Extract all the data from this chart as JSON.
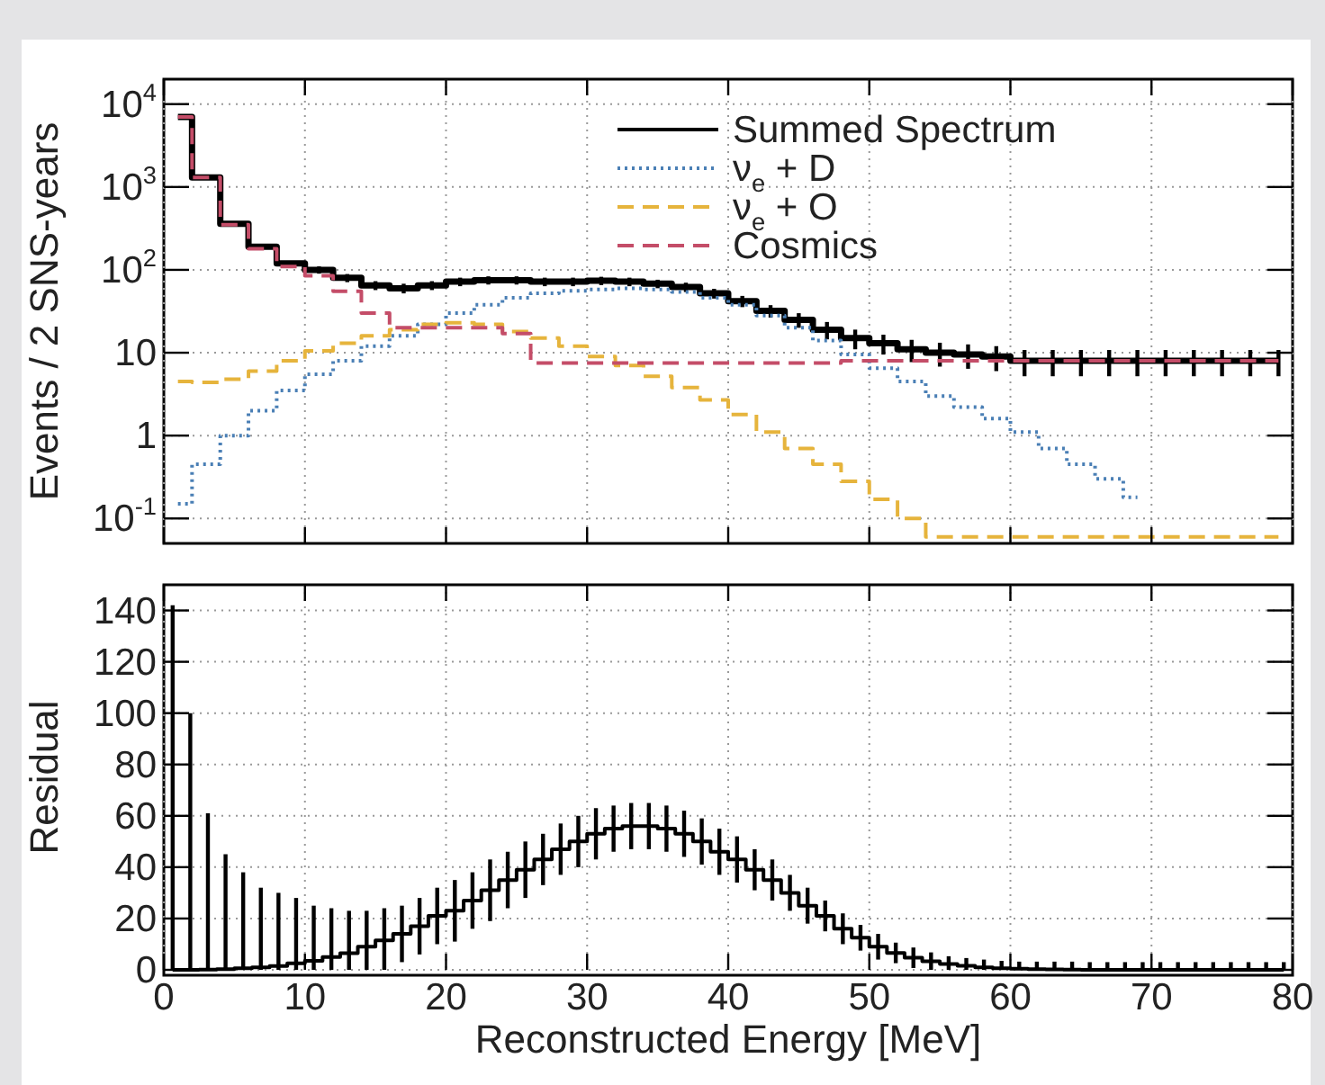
{
  "chart_data": [
    {
      "type": "step",
      "ylabel": "Events / 2 SNS-years",
      "log": true,
      "grid": true,
      "legend": "top right",
      "tick_labels": "y",
      "xlim": [
        0,
        80
      ],
      "xticks": [
        0,
        10,
        20,
        30,
        40,
        50,
        60,
        70,
        80
      ],
      "ylim": [
        0.05,
        20000
      ],
      "yticks": [
        {
          "value": 0.1,
          "label": "10$^{-1}$"
        },
        1,
        10,
        {
          "value": 100,
          "label": "10$^{2}$"
        },
        {
          "value": 1000,
          "label": "10$^{3}$"
        },
        {
          "value": 10000,
          "label": "10$^{4}$"
        }
      ],
      "x": [
        1,
        3,
        5,
        7,
        9,
        11,
        13,
        15,
        17,
        19,
        21,
        23,
        25,
        27,
        29,
        31,
        33,
        35,
        37,
        39,
        41,
        43,
        45,
        47,
        49,
        51,
        53,
        55,
        57,
        59,
        61,
        63,
        65,
        67,
        69,
        71,
        73,
        75,
        77,
        79
      ],
      "series": [
        {
          "name": "Summed Spectrum",
          "color": "#000000",
          "line_style": "solid",
          "values": [
            7000,
            1300,
            360,
            190,
            120,
            100,
            80,
            65,
            60,
            65,
            72,
            75,
            75,
            72,
            72,
            74,
            72,
            68,
            62,
            52,
            42,
            32,
            25,
            19,
            15,
            13,
            11,
            10,
            9.5,
            9,
            8,
            8,
            8,
            8,
            8,
            8,
            8,
            8,
            8,
            8
          ],
          "errors": [
            null,
            null,
            null,
            null,
            null,
            10,
            9,
            8,
            8,
            8,
            8.5,
            8.5,
            8.5,
            8.5,
            8.5,
            8.5,
            8.5,
            8,
            8,
            7,
            6.5,
            5.5,
            5,
            4.5,
            4,
            3.5,
            3.3,
            3.2,
            3.1,
            3,
            2.8,
            2.8,
            2.8,
            2.8,
            2.8,
            2.8,
            2.8,
            2.8,
            2.8,
            2.8
          ]
        },
        {
          "name": "ν$_{e}$ + D",
          "color": "#4a7fb5",
          "line_style": "dotted",
          "values": [
            0.15,
            0.45,
            1,
            2,
            3.5,
            5.5,
            8,
            12,
            16,
            22,
            30,
            38,
            46,
            52,
            56,
            58,
            60,
            58,
            54,
            46,
            38,
            28,
            20,
            14,
            9.5,
            6.5,
            4.5,
            3,
            2.2,
            1.6,
            1.1,
            0.7,
            0.45,
            0.3,
            0.18,
            null,
            null,
            null,
            null,
            null
          ]
        },
        {
          "name": "ν$_{e}$ + O",
          "color": "#e6b43c",
          "line_style": "dashed",
          "values": [
            4.5,
            4.4,
            4.8,
            6,
            8,
            10.5,
            13,
            16,
            19,
            22,
            23,
            22,
            18,
            15,
            12,
            9,
            7,
            5.2,
            3.8,
            2.7,
            1.8,
            1.1,
            0.7,
            0.45,
            0.28,
            0.17,
            0.1,
            0.06,
            0.06,
            0.06,
            0.06,
            0.06,
            0.06,
            0.06,
            0.06,
            0.06,
            0.06,
            0.06,
            0.06,
            0.06
          ]
        },
        {
          "name": "Cosmics",
          "color": "#c44d68",
          "line_style": "dashed",
          "values": [
            7000,
            1300,
            350,
            180,
            110,
            85,
            55,
            30,
            20,
            20,
            20,
            20,
            17,
            7.5,
            7.5,
            7.5,
            7.5,
            7.5,
            7.5,
            7.5,
            7.5,
            7.5,
            7.5,
            7.5,
            8,
            8,
            8,
            8,
            8,
            8,
            8,
            8,
            8,
            8,
            8,
            8,
            8,
            8,
            8,
            8
          ]
        }
      ]
    },
    {
      "type": "step",
      "xlabel": "Reconstructed Energy [MeV]",
      "ylabel": "Residual",
      "grid": true,
      "xlim": [
        0,
        80
      ],
      "xticks": [
        0,
        10,
        20,
        30,
        40,
        50,
        60,
        70,
        80
      ],
      "ylim": [
        0,
        150
      ],
      "yticks": [
        0,
        20,
        40,
        60,
        80,
        100,
        120,
        140
      ],
      "x": [
        0.625,
        1.875,
        3.125,
        4.375,
        5.625,
        6.875,
        8.125,
        9.375,
        10.625,
        11.875,
        13.125,
        14.375,
        15.625,
        16.875,
        18.125,
        19.375,
        20.625,
        21.875,
        23.125,
        24.375,
        25.625,
        26.875,
        28.125,
        29.375,
        30.625,
        31.875,
        33.125,
        34.375,
        35.625,
        36.875,
        38.125,
        39.375,
        40.625,
        41.875,
        43.125,
        44.375,
        45.625,
        46.875,
        48.125,
        49.375,
        50.625,
        51.875,
        53.125,
        54.375,
        55.625,
        56.875,
        58.125,
        59.375,
        60.625,
        61.875,
        63.125,
        64.375,
        65.625,
        66.875,
        68.125,
        69.375,
        70.625,
        71.875,
        73.125,
        74.375,
        75.625,
        76.875,
        78.125,
        79.375
      ],
      "series": [
        {
          "color": "#000000",
          "values": [
            0,
            0,
            0.1,
            0.3,
            0.6,
            1,
            1.5,
            2.5,
            3.5,
            5,
            6.5,
            9,
            11.5,
            14,
            17,
            21,
            23,
            27,
            31,
            35,
            39,
            43,
            47,
            50,
            53,
            55,
            56,
            56,
            55,
            53,
            50,
            46,
            43,
            39,
            35,
            30,
            25,
            21,
            16,
            12.5,
            9,
            6.6,
            4.7,
            3.3,
            2.3,
            1.6,
            1,
            0.6,
            0.4,
            0.3,
            0.2,
            0.1,
            0,
            0,
            0,
            0,
            0,
            0,
            0,
            0,
            0,
            0,
            0,
            0
          ],
          "errors": [
            [
              0,
              142
            ],
            [
              0,
              100
            ],
            [
              0,
              61
            ],
            [
              0,
              45
            ],
            [
              0,
              38
            ],
            [
              0,
              32
            ],
            [
              0,
              30
            ],
            [
              0,
              28
            ],
            [
              0,
              25
            ],
            [
              0,
              24
            ],
            [
              0,
              23
            ],
            [
              0,
              23
            ],
            [
              0,
              24
            ],
            11,
            11,
            11,
            12,
            11,
            12,
            11,
            11,
            10,
            10,
            10,
            10,
            9,
            9,
            9,
            9,
            9,
            9,
            9,
            9,
            8,
            8,
            7,
            7,
            6,
            6,
            5,
            5,
            4,
            4,
            [
              0,
              6.8
            ],
            [
              0,
              5.3
            ],
            [
              0,
              4.6
            ],
            [
              0,
              4
            ],
            [
              0,
              3.5
            ],
            [
              0,
              3.2
            ],
            [
              0,
              3.2
            ],
            [
              0,
              3.2
            ],
            [
              0,
              3.2
            ],
            [
              0,
              3
            ],
            [
              0,
              3
            ],
            [
              0,
              3
            ],
            [
              0,
              3
            ],
            [
              0,
              3
            ],
            [
              0,
              3
            ],
            [
              0,
              3
            ],
            [
              0,
              3
            ],
            [
              0,
              3
            ],
            [
              0,
              3
            ],
            [
              0,
              3
            ],
            [
              0,
              3
            ]
          ]
        }
      ]
    }
  ]
}
